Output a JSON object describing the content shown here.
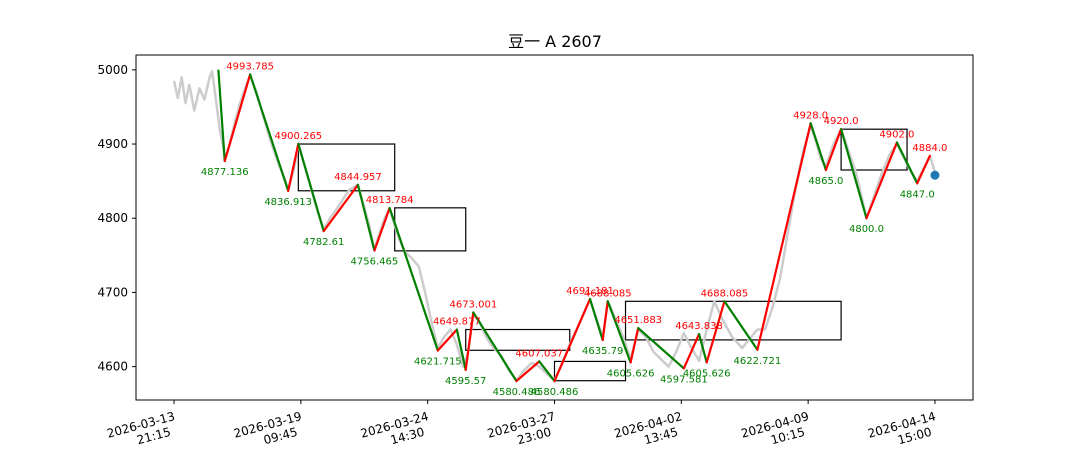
{
  "chart_data": {
    "type": "line",
    "title": "豆一 A 2607",
    "xlabel": "",
    "ylabel": "",
    "ylim": [
      4555,
      5020
    ],
    "xlim": [
      -0.3,
      6.3
    ],
    "y_ticks": [
      4600,
      4700,
      4800,
      4900,
      5000
    ],
    "x_ticks": [
      {
        "pos": 0,
        "line1": "2026-03-13",
        "line2": "21:15"
      },
      {
        "pos": 1,
        "line1": "2026-03-19",
        "line2": "09:45"
      },
      {
        "pos": 2,
        "line1": "2026-03-24",
        "line2": "14:30"
      },
      {
        "pos": 3,
        "line1": "2026-03-27",
        "line2": "23:00"
      },
      {
        "pos": 4,
        "line1": "2026-04-02",
        "line2": "13:45"
      },
      {
        "pos": 5,
        "line1": "2026-04-09",
        "line2": "10:15"
      },
      {
        "pos": 6,
        "line1": "2026-04-14",
        "line2": "15:00"
      }
    ],
    "colors": {
      "price": "#cccccc",
      "up": "#ff0000",
      "down": "#008000",
      "box": "#000000",
      "marker": "#1f77b4"
    },
    "price_series": [
      [
        0.0,
        4985
      ],
      [
        0.03,
        4962
      ],
      [
        0.06,
        4990
      ],
      [
        0.09,
        4955
      ],
      [
        0.12,
        4980
      ],
      [
        0.16,
        4945
      ],
      [
        0.2,
        4975
      ],
      [
        0.24,
        4960
      ],
      [
        0.28,
        4990
      ],
      [
        0.3,
        4998
      ],
      [
        0.33,
        4960
      ],
      [
        0.36,
        4920
      ],
      [
        0.39,
        4895
      ],
      [
        0.4,
        4878
      ],
      [
        0.44,
        4900
      ],
      [
        0.48,
        4930
      ],
      [
        0.52,
        4955
      ],
      [
        0.56,
        4975
      ],
      [
        0.6,
        4993
      ],
      [
        0.65,
        4970
      ],
      [
        0.7,
        4940
      ],
      [
        0.76,
        4905
      ],
      [
        0.82,
        4875
      ],
      [
        0.88,
        4850
      ],
      [
        0.9,
        4838
      ],
      [
        0.95,
        4870
      ],
      [
        0.98,
        4900
      ],
      [
        1.03,
        4870
      ],
      [
        1.08,
        4840
      ],
      [
        1.13,
        4810
      ],
      [
        1.18,
        4785
      ],
      [
        1.23,
        4800
      ],
      [
        1.28,
        4812
      ],
      [
        1.33,
        4825
      ],
      [
        1.38,
        4838
      ],
      [
        1.45,
        4845
      ],
      [
        1.5,
        4815
      ],
      [
        1.54,
        4790
      ],
      [
        1.58,
        4758
      ],
      [
        1.62,
        4780
      ],
      [
        1.66,
        4800
      ],
      [
        1.7,
        4813
      ],
      [
        1.74,
        4790
      ],
      [
        1.78,
        4770
      ],
      [
        1.82,
        4755
      ],
      [
        1.88,
        4745
      ],
      [
        1.93,
        4735
      ],
      [
        1.98,
        4700
      ],
      [
        2.03,
        4660
      ],
      [
        2.08,
        4625
      ],
      [
        2.13,
        4640
      ],
      [
        2.18,
        4650
      ],
      [
        2.23,
        4630
      ],
      [
        2.28,
        4600
      ],
      [
        2.32,
        4620
      ],
      [
        2.36,
        4670
      ],
      [
        2.41,
        4660
      ],
      [
        2.46,
        4640
      ],
      [
        2.52,
        4625
      ],
      [
        2.58,
        4615
      ],
      [
        2.64,
        4595
      ],
      [
        2.7,
        4582
      ],
      [
        2.76,
        4595
      ],
      [
        2.82,
        4605
      ],
      [
        2.88,
        4600
      ],
      [
        2.94,
        4590
      ],
      [
        3.0,
        4582
      ],
      [
        3.05,
        4600
      ],
      [
        3.12,
        4630
      ],
      [
        3.2,
        4660
      ],
      [
        3.28,
        4690
      ],
      [
        3.34,
        4660
      ],
      [
        3.38,
        4640
      ],
      [
        3.42,
        4688
      ],
      [
        3.48,
        4665
      ],
      [
        3.54,
        4640
      ],
      [
        3.6,
        4610
      ],
      [
        3.66,
        4650
      ],
      [
        3.72,
        4640
      ],
      [
        3.78,
        4620
      ],
      [
        3.84,
        4610
      ],
      [
        3.9,
        4600
      ],
      [
        3.96,
        4620
      ],
      [
        4.02,
        4645
      ],
      [
        4.08,
        4625
      ],
      [
        4.14,
        4608
      ],
      [
        4.2,
        4650
      ],
      [
        4.26,
        4688
      ],
      [
        4.32,
        4665
      ],
      [
        4.4,
        4640
      ],
      [
        4.48,
        4625
      ],
      [
        4.55,
        4640
      ],
      [
        4.6,
        4650
      ],
      [
        4.66,
        4650
      ],
      [
        4.72,
        4680
      ],
      [
        4.78,
        4720
      ],
      [
        4.84,
        4780
      ],
      [
        4.9,
        4840
      ],
      [
        4.96,
        4890
      ],
      [
        5.02,
        4925
      ],
      [
        5.06,
        4905
      ],
      [
        5.1,
        4880
      ],
      [
        5.14,
        4870
      ],
      [
        5.2,
        4900
      ],
      [
        5.26,
        4920
      ],
      [
        5.32,
        4890
      ],
      [
        5.38,
        4860
      ],
      [
        5.42,
        4830
      ],
      [
        5.46,
        4800
      ],
      [
        5.52,
        4830
      ],
      [
        5.58,
        4860
      ],
      [
        5.64,
        4885
      ],
      [
        5.7,
        4900
      ],
      [
        5.76,
        4880
      ],
      [
        5.82,
        4860
      ],
      [
        5.86,
        4850
      ],
      [
        5.92,
        4870
      ],
      [
        5.96,
        4884
      ],
      [
        6.0,
        4862
      ]
    ],
    "zigzag": [
      [
        0.35,
        4999
      ],
      [
        0.4,
        4877.136
      ],
      [
        0.6,
        4993.785
      ],
      [
        0.9,
        4836.913
      ],
      [
        0.98,
        4900.265
      ],
      [
        1.18,
        4782.61
      ],
      [
        1.45,
        4844.957
      ],
      [
        1.58,
        4756.465
      ],
      [
        1.7,
        4813.784
      ],
      [
        2.08,
        4621.715
      ],
      [
        2.23,
        4649.877
      ],
      [
        2.3,
        4595.57
      ],
      [
        2.36,
        4673.001
      ],
      [
        2.7,
        4580.486
      ],
      [
        2.88,
        4607.037
      ],
      [
        3.0,
        4580.486
      ],
      [
        3.28,
        4691.181
      ],
      [
        3.38,
        4635.79
      ],
      [
        3.42,
        4688.085
      ],
      [
        3.6,
        4605.626
      ],
      [
        3.66,
        4651.883
      ],
      [
        4.02,
        4597.581
      ],
      [
        4.14,
        4643.838
      ],
      [
        4.2,
        4605.626
      ],
      [
        4.34,
        4688.085
      ],
      [
        4.6,
        4622.721
      ],
      [
        5.02,
        4928.0
      ],
      [
        5.14,
        4865.0
      ],
      [
        5.26,
        4920.0
      ],
      [
        5.46,
        4800.0
      ],
      [
        5.7,
        4902.0
      ],
      [
        5.86,
        4847.0
      ],
      [
        5.96,
        4884.0
      ]
    ],
    "boxes": [
      {
        "x0": 0.98,
        "x1": 1.74,
        "y0": 4837,
        "y1": 4900
      },
      {
        "x0": 1.74,
        "x1": 2.3,
        "y0": 4756,
        "y1": 4814
      },
      {
        "x0": 2.3,
        "x1": 3.12,
        "y0": 4622,
        "y1": 4650
      },
      {
        "x0": 3.0,
        "x1": 3.56,
        "y0": 4581,
        "y1": 4607
      },
      {
        "x0": 3.56,
        "x1": 5.26,
        "y0": 4636,
        "y1": 4688
      },
      {
        "x0": 5.26,
        "x1": 5.78,
        "y0": 4865,
        "y1": 4920
      }
    ],
    "peak_labels": [
      {
        "x": 0.6,
        "y": 4993.785,
        "text": "4993.785"
      },
      {
        "x": 0.98,
        "y": 4900.265,
        "text": "4900.265"
      },
      {
        "x": 1.45,
        "y": 4844.957,
        "text": "4844.957"
      },
      {
        "x": 1.7,
        "y": 4813.784,
        "text": "4813.784"
      },
      {
        "x": 2.23,
        "y": 4649.877,
        "text": "4649.877"
      },
      {
        "x": 2.36,
        "y": 4673.001,
        "text": "4673.001"
      },
      {
        "x": 2.88,
        "y": 4607.037,
        "text": "4607.037"
      },
      {
        "x": 3.28,
        "y": 4691.181,
        "text": "4691.181"
      },
      {
        "x": 3.42,
        "y": 4688.085,
        "text": "4688.085"
      },
      {
        "x": 3.66,
        "y": 4651.883,
        "text": "4651.883"
      },
      {
        "x": 4.14,
        "y": 4643.838,
        "text": "4643.838"
      },
      {
        "x": 4.34,
        "y": 4688.085,
        "text": "4688.085"
      },
      {
        "x": 5.02,
        "y": 4928.0,
        "text": "4928.0"
      },
      {
        "x": 5.26,
        "y": 4920.0,
        "text": "4920.0"
      },
      {
        "x": 5.7,
        "y": 4902.0,
        "text": "4902.0"
      },
      {
        "x": 5.96,
        "y": 4884.0,
        "text": "4884.0"
      }
    ],
    "trough_labels": [
      {
        "x": 0.4,
        "y": 4877.136,
        "text": "4877.136"
      },
      {
        "x": 0.9,
        "y": 4836.913,
        "text": "4836.913"
      },
      {
        "x": 1.18,
        "y": 4782.61,
        "text": "4782.61"
      },
      {
        "x": 1.58,
        "y": 4756.465,
        "text": "4756.465"
      },
      {
        "x": 2.08,
        "y": 4621.715,
        "text": "4621.715"
      },
      {
        "x": 2.3,
        "y": 4595.57,
        "text": "4595.57"
      },
      {
        "x": 2.7,
        "y": 4580.486,
        "text": "4580.486"
      },
      {
        "x": 3.0,
        "y": 4580.486,
        "text": "4580.486"
      },
      {
        "x": 3.38,
        "y": 4635.79,
        "text": "4635.79"
      },
      {
        "x": 3.6,
        "y": 4605.626,
        "text": "4605.626"
      },
      {
        "x": 4.02,
        "y": 4597.581,
        "text": "4597.581"
      },
      {
        "x": 4.2,
        "y": 4605.626,
        "text": "4605.626"
      },
      {
        "x": 4.6,
        "y": 4622.721,
        "text": "4622.721"
      },
      {
        "x": 5.14,
        "y": 4865.0,
        "text": "4865.0"
      },
      {
        "x": 5.46,
        "y": 4800.0,
        "text": "4800.0"
      },
      {
        "x": 5.86,
        "y": 4847.0,
        "text": "4847.0"
      }
    ],
    "current_marker": {
      "x": 6.0,
      "y": 4858
    },
    "grid": false,
    "legend": "none"
  }
}
